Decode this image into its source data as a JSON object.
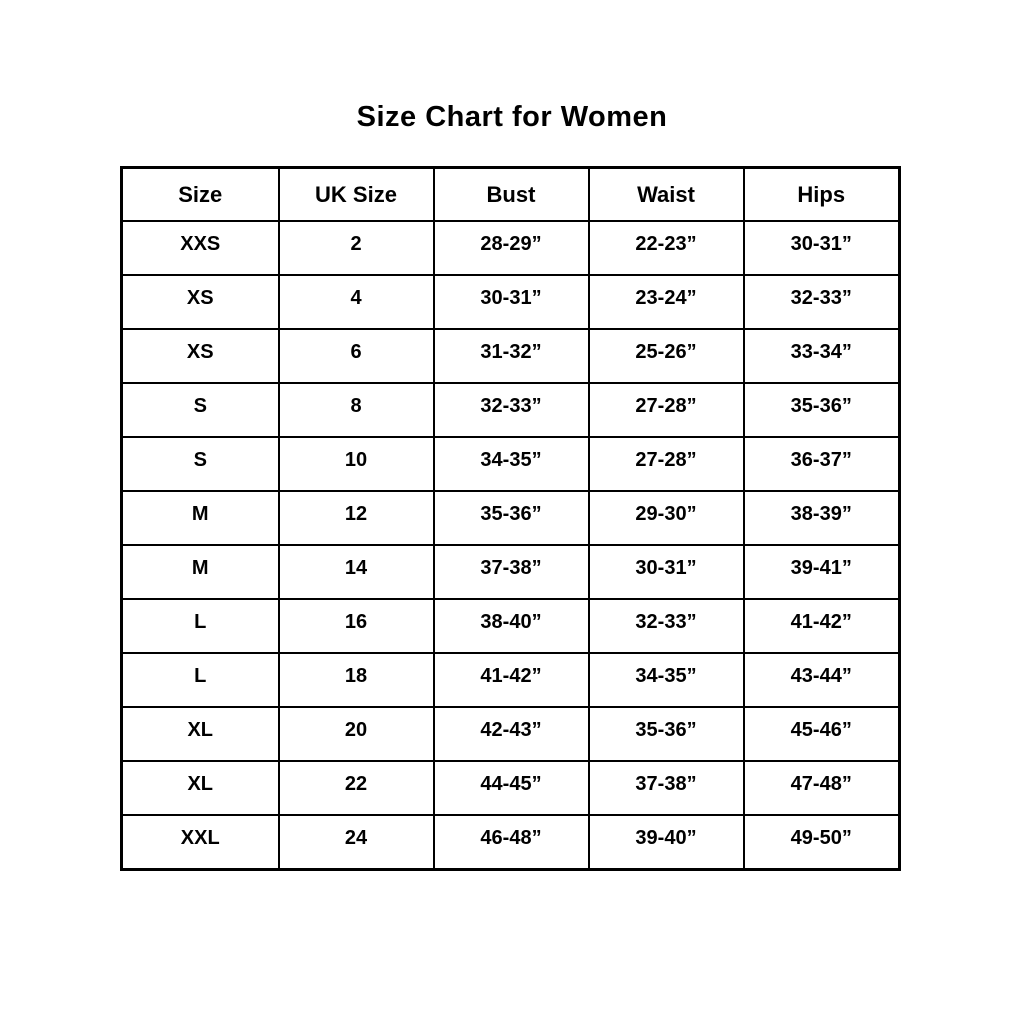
{
  "title": "Size Chart for Women",
  "colors": {
    "background": "#ffffff",
    "text": "#000000",
    "border": "#000000"
  },
  "chart_data": {
    "type": "table",
    "title": "Size Chart for Women",
    "columns": [
      "Size",
      "UK Size",
      "Bust",
      "Waist",
      "Hips"
    ],
    "rows": [
      [
        "XXS",
        "2",
        "28-29”",
        "22-23”",
        "30-31”"
      ],
      [
        "XS",
        "4",
        "30-31”",
        "23-24”",
        "32-33”"
      ],
      [
        "XS",
        "6",
        "31-32”",
        "25-26”",
        "33-34”"
      ],
      [
        "S",
        "8",
        "32-33”",
        "27-28”",
        "35-36”"
      ],
      [
        "S",
        "10",
        "34-35”",
        "27-28”",
        "36-37”"
      ],
      [
        "M",
        "12",
        "35-36”",
        "29-30”",
        "38-39”"
      ],
      [
        "M",
        "14",
        "37-38”",
        "30-31”",
        "39-41”"
      ],
      [
        "L",
        "16",
        "38-40”",
        "32-33”",
        "41-42”"
      ],
      [
        "L",
        "18",
        "41-42”",
        "34-35”",
        "43-44”"
      ],
      [
        "XL",
        "20",
        "42-43”",
        "35-36”",
        "45-46”"
      ],
      [
        "XL",
        "22",
        "44-45”",
        "37-38”",
        "47-48”"
      ],
      [
        "XXL",
        "24",
        "46-48”",
        "39-40”",
        "49-50”"
      ]
    ]
  }
}
